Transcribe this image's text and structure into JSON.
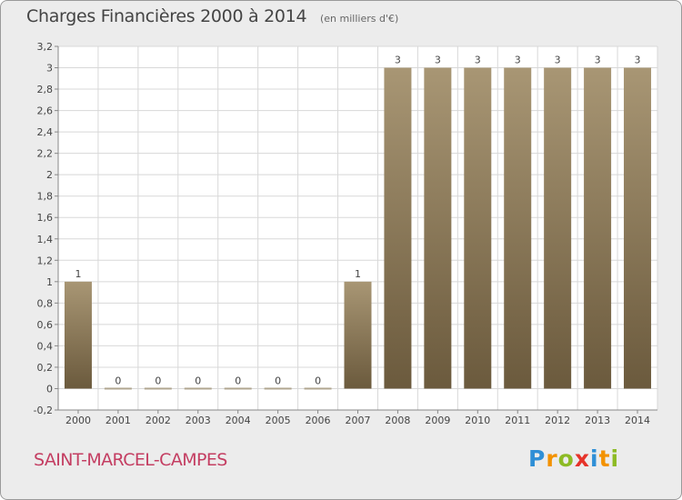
{
  "header": {
    "title": "Charges Financières 2000 à 2014",
    "subtitle": "(en milliers d'€)"
  },
  "footer": {
    "commune": "SAINT-MARCEL-CAMPES",
    "logo_letters": [
      "P",
      "r",
      "o",
      "x",
      "i",
      "t",
      "i"
    ],
    "logo_colors": [
      "#2f8fd6",
      "#f39200",
      "#8dbb25",
      "#e6332a",
      "#2f8fd6",
      "#f39200",
      "#8dbb25"
    ]
  },
  "colors": {
    "bar_light": "#a89674",
    "bar_dark": "#6b5a3d",
    "background": "#ececec",
    "plot_background": "#ffffff",
    "grid": "#d8d8d8"
  },
  "chart_data": {
    "type": "bar",
    "title": "Charges Financières 2000 à 2014",
    "subtitle": "(en milliers d'€)",
    "xlabel": "",
    "ylabel": "",
    "categories": [
      "2000",
      "2001",
      "2002",
      "2003",
      "2004",
      "2005",
      "2006",
      "2007",
      "2008",
      "2009",
      "2010",
      "2011",
      "2012",
      "2013",
      "2014"
    ],
    "values": [
      1,
      0,
      0,
      0,
      0,
      0,
      0,
      1,
      3,
      3,
      3,
      3,
      3,
      3,
      3
    ],
    "value_labels": [
      "1",
      "0",
      "0",
      "0",
      "0",
      "0",
      "0",
      "1",
      "3",
      "3",
      "3",
      "3",
      "3",
      "3",
      "3"
    ],
    "ylim": [
      -0.2,
      3.2
    ],
    "yticks": [
      -0.2,
      0,
      0.2,
      0.4,
      0.6,
      0.8,
      1,
      1.2,
      1.4,
      1.6,
      1.8,
      2,
      2.2,
      2.4,
      2.6,
      2.8,
      3,
      3.2
    ],
    "ytick_labels": [
      "-0,2",
      "0",
      "0,2",
      "0,4",
      "0,6",
      "0,8",
      "1",
      "1,2",
      "1,4",
      "1,6",
      "1,8",
      "2",
      "2,2",
      "2,4",
      "2,6",
      "2,8",
      "3",
      "3,2"
    ],
    "grid": true,
    "legend": "none"
  }
}
